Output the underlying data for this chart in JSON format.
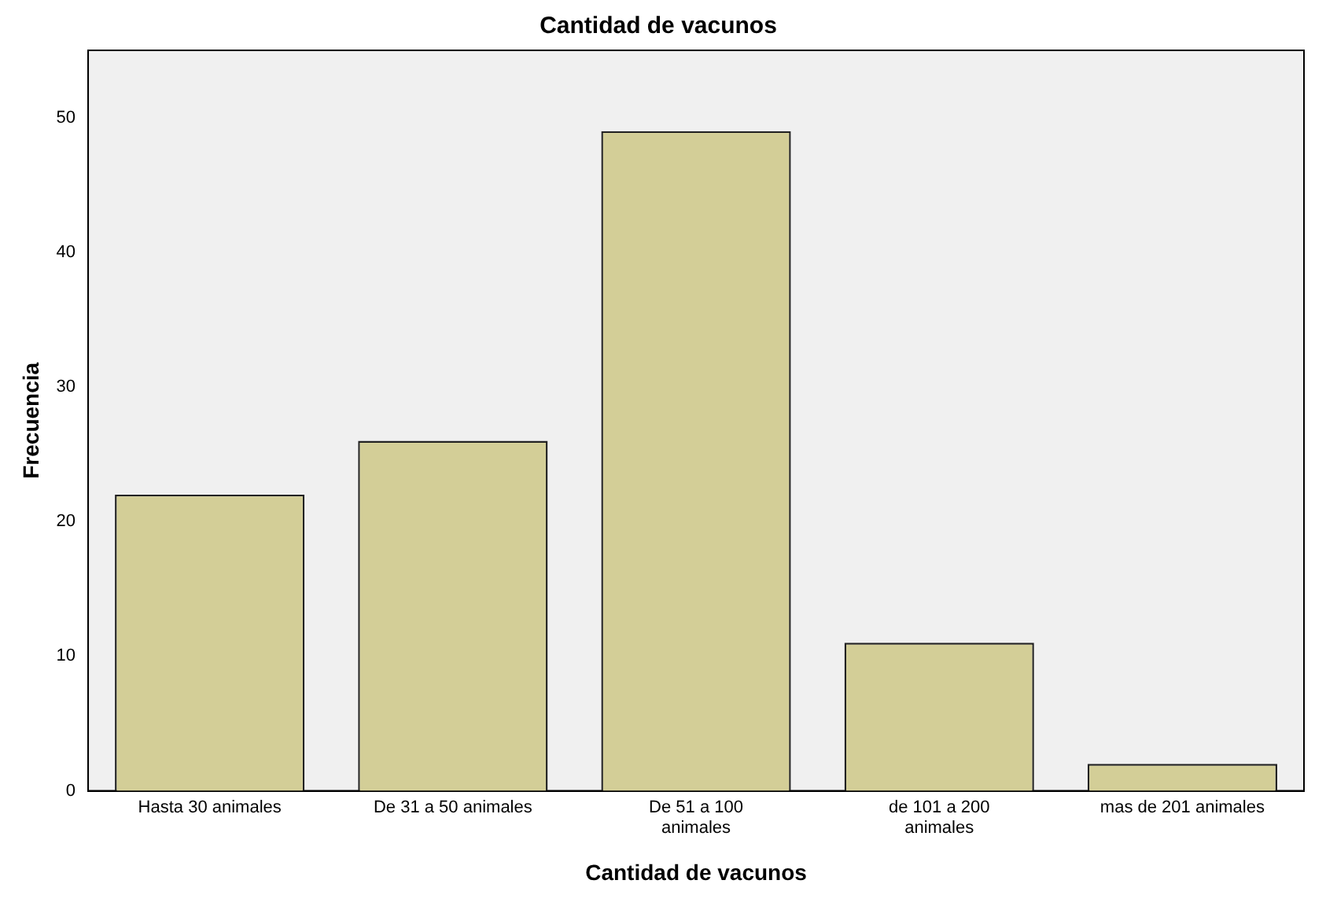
{
  "chart_data": {
    "type": "bar",
    "title": "Cantidad de vacunos",
    "xlabel": "Cantidad de vacunos",
    "ylabel": "Frecuencia",
    "categories": [
      "Hasta 30 animales",
      "De 31 a 50 animales",
      "De 51 a 100 animales",
      "de 101 a 200 animales",
      "mas de 201 animales"
    ],
    "values": [
      22,
      26,
      49,
      11,
      2
    ],
    "color": "#d3ce97",
    "ylim": [
      0,
      55
    ],
    "yticks": [
      0,
      10,
      20,
      30,
      40,
      50
    ],
    "grid": false,
    "legend": false
  }
}
